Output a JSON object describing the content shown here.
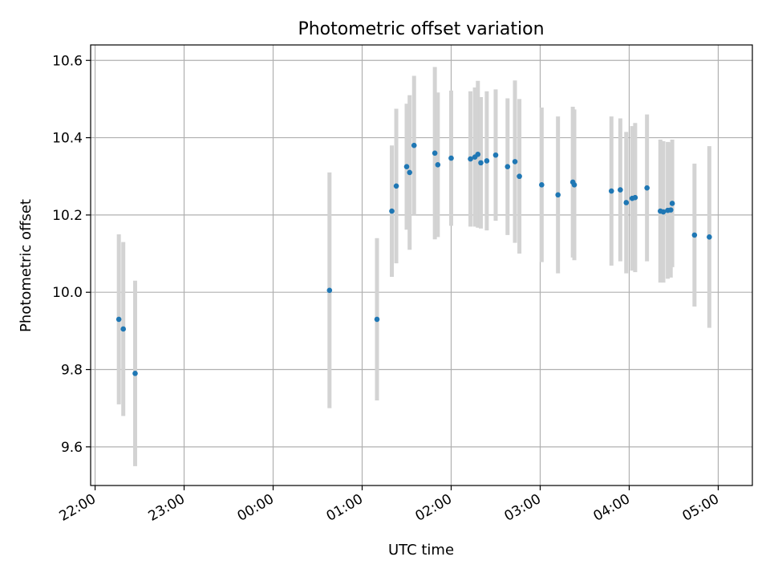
{
  "chart_data": {
    "type": "scatter",
    "title": "Photometric offset variation",
    "xlabel": "UTC time",
    "ylabel": "Photometric offset",
    "x_axis_kind": "time",
    "xlim": [
      "21:57",
      "05:23"
    ],
    "ylim": [
      9.5,
      10.64
    ],
    "x_ticks": [
      "22:00",
      "23:00",
      "00:00",
      "01:00",
      "02:00",
      "03:00",
      "04:00",
      "05:00"
    ],
    "y_ticks": [
      "9.6",
      "9.8",
      "10.0",
      "10.2",
      "10.4",
      "10.6"
    ],
    "grid": true,
    "legend": "none",
    "colors": {
      "point": "#1f77b4",
      "errorbar": "#d3d3d3",
      "grid": "#b0b0b0"
    },
    "points": [
      {
        "x": "22:16",
        "y": 9.93,
        "err": 0.22
      },
      {
        "x": "22:19",
        "y": 9.905,
        "err": 0.225
      },
      {
        "x": "22:27",
        "y": 9.79,
        "err": 0.24
      },
      {
        "x": "00:38",
        "y": 10.005,
        "err": 0.305
      },
      {
        "x": "01:10",
        "y": 9.93,
        "err": 0.21
      },
      {
        "x": "01:20",
        "y": 10.21,
        "err": 0.17
      },
      {
        "x": "01:23",
        "y": 10.275,
        "err": 0.2
      },
      {
        "x": "01:30",
        "y": 10.325,
        "err": 0.163
      },
      {
        "x": "01:32",
        "y": 10.31,
        "err": 0.2
      },
      {
        "x": "01:35",
        "y": 10.38,
        "err": 0.18
      },
      {
        "x": "01:49",
        "y": 10.36,
        "err": 0.223
      },
      {
        "x": "01:51",
        "y": 10.33,
        "err": 0.187
      },
      {
        "x": "02:00",
        "y": 10.347,
        "err": 0.175
      },
      {
        "x": "02:13",
        "y": 10.345,
        "err": 0.175
      },
      {
        "x": "02:16",
        "y": 10.35,
        "err": 0.18
      },
      {
        "x": "02:18",
        "y": 10.357,
        "err": 0.19
      },
      {
        "x": "02:20",
        "y": 10.335,
        "err": 0.17
      },
      {
        "x": "02:24",
        "y": 10.34,
        "err": 0.18
      },
      {
        "x": "02:30",
        "y": 10.355,
        "err": 0.17
      },
      {
        "x": "02:38",
        "y": 10.325,
        "err": 0.177
      },
      {
        "x": "02:43",
        "y": 10.338,
        "err": 0.21
      },
      {
        "x": "02:46",
        "y": 10.3,
        "err": 0.2
      },
      {
        "x": "03:01",
        "y": 10.278,
        "err": 0.2
      },
      {
        "x": "03:12",
        "y": 10.252,
        "err": 0.203
      },
      {
        "x": "03:22",
        "y": 10.285,
        "err": 0.195
      },
      {
        "x": "03:23",
        "y": 10.278,
        "err": 0.195
      },
      {
        "x": "03:48",
        "y": 10.262,
        "err": 0.193
      },
      {
        "x": "03:54",
        "y": 10.265,
        "err": 0.185
      },
      {
        "x": "03:58",
        "y": 10.232,
        "err": 0.183
      },
      {
        "x": "04:02",
        "y": 10.243,
        "err": 0.187
      },
      {
        "x": "04:04",
        "y": 10.245,
        "err": 0.193
      },
      {
        "x": "04:12",
        "y": 10.27,
        "err": 0.19
      },
      {
        "x": "04:21",
        "y": 10.21,
        "err": 0.185
      },
      {
        "x": "04:23",
        "y": 10.208,
        "err": 0.183
      },
      {
        "x": "04:26",
        "y": 10.212,
        "err": 0.177
      },
      {
        "x": "04:28",
        "y": 10.213,
        "err": 0.175
      },
      {
        "x": "04:29",
        "y": 10.23,
        "err": 0.165
      },
      {
        "x": "04:44",
        "y": 10.148,
        "err": 0.185
      },
      {
        "x": "04:54",
        "y": 10.143,
        "err": 0.235
      }
    ]
  }
}
